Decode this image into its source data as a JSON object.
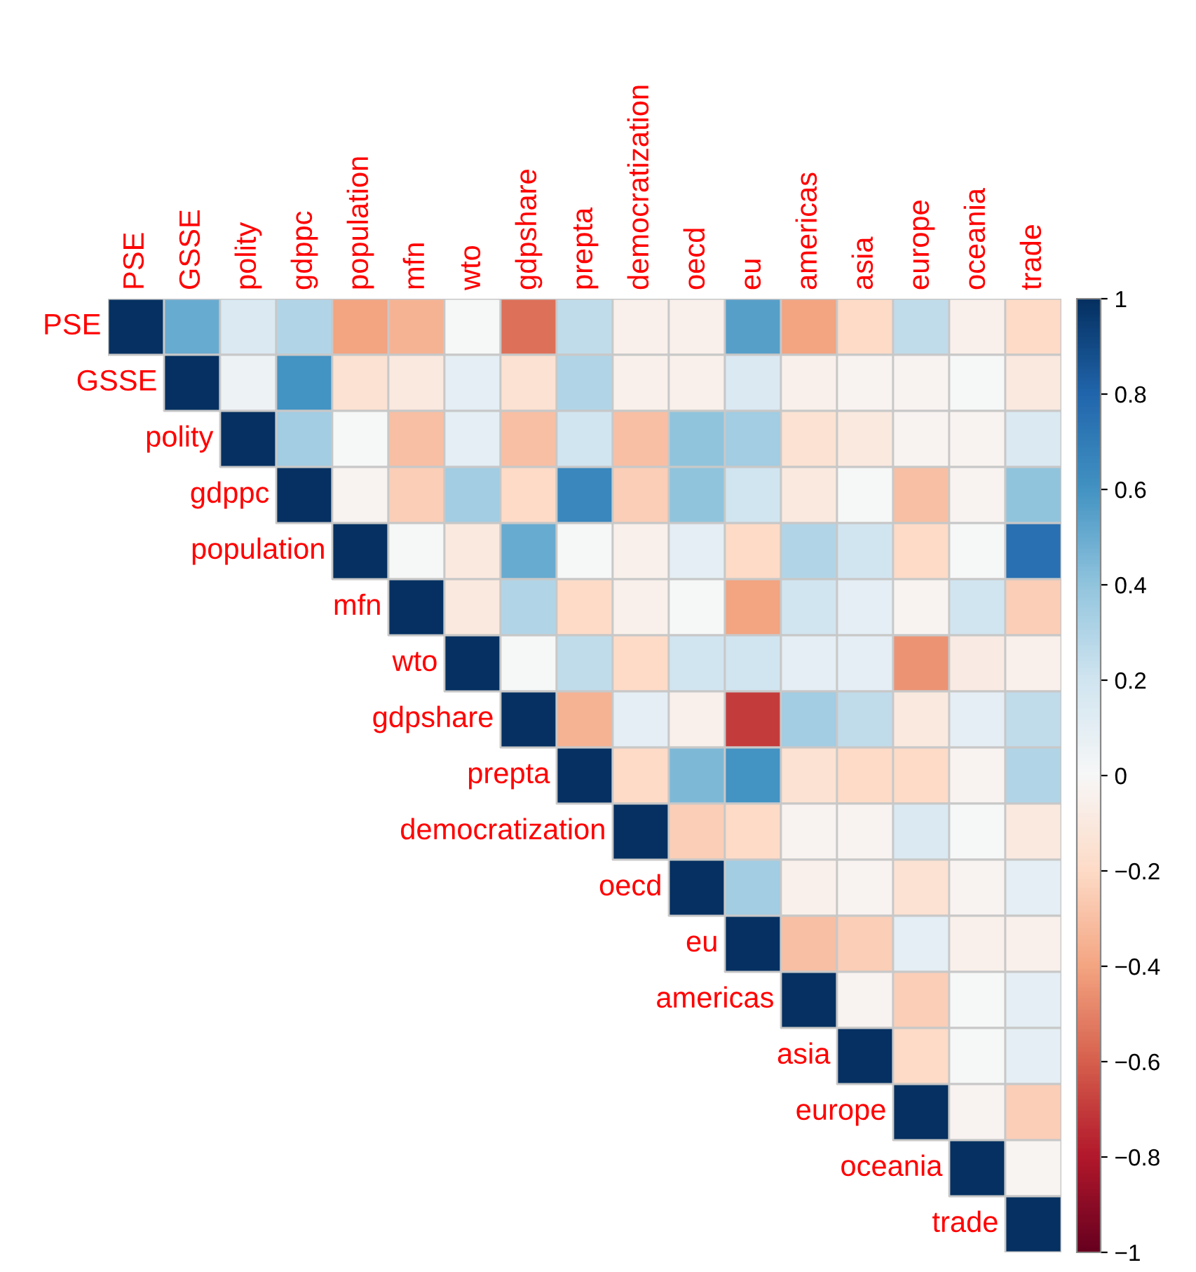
{
  "chart_data": {
    "type": "heatmap",
    "categories": [
      "PSE",
      "GSSE",
      "polity",
      "gdppc",
      "population",
      "mfn",
      "wto",
      "gdpshare",
      "prepta",
      "democratization",
      "oecd",
      "eu",
      "americas",
      "asia",
      "europe",
      "oceania",
      "trade"
    ],
    "y_categories": [
      "PSE",
      "GSSE",
      "polity",
      "gdppc",
      "population",
      "mfn",
      "wto",
      "gdpshare",
      "prepta",
      "democratization",
      "oecd",
      "eu",
      "americas",
      "asia",
      "europe",
      "oceania",
      "trade"
    ],
    "cells": [
      [
        1,
        0.5,
        0.15,
        0.3,
        -0.4,
        -0.35,
        0,
        -0.55,
        0.25,
        -0.05,
        -0.05,
        0.55,
        -0.4,
        -0.2,
        0.25,
        -0.05,
        -0.2
      ],
      [
        null,
        1,
        0.05,
        0.6,
        -0.15,
        -0.1,
        0.1,
        -0.15,
        0.3,
        -0.05,
        -0.05,
        0.15,
        -0.05,
        -0.03,
        -0.03,
        0,
        -0.1
      ],
      [
        null,
        null,
        1,
        0.35,
        0,
        -0.3,
        0.1,
        -0.3,
        0.2,
        -0.3,
        0.4,
        0.35,
        -0.15,
        -0.1,
        -0.03,
        -0.03,
        0.15
      ],
      [
        null,
        null,
        null,
        1,
        -0.03,
        -0.25,
        0.35,
        -0.2,
        0.65,
        -0.25,
        0.4,
        0.2,
        -0.1,
        0,
        -0.3,
        -0.03,
        0.4
      ],
      [
        null,
        null,
        null,
        null,
        1,
        0,
        -0.1,
        0.5,
        0,
        -0.05,
        0.1,
        -0.2,
        0.3,
        0.2,
        -0.2,
        0,
        0.75
      ],
      [
        null,
        null,
        null,
        null,
        null,
        1,
        -0.1,
        0.3,
        -0.2,
        -0.05,
        0,
        -0.4,
        0.2,
        0.1,
        -0.03,
        0.2,
        -0.25
      ],
      [
        null,
        null,
        null,
        null,
        null,
        null,
        1,
        0,
        0.25,
        -0.2,
        0.2,
        0.2,
        0.1,
        0.1,
        -0.45,
        -0.08,
        -0.05
      ],
      [
        null,
        null,
        null,
        null,
        null,
        null,
        null,
        1,
        -0.35,
        0.1,
        -0.05,
        -0.7,
        0.35,
        0.25,
        -0.1,
        0.1,
        0.25
      ],
      [
        null,
        null,
        null,
        null,
        null,
        null,
        null,
        null,
        1,
        -0.2,
        0.45,
        0.6,
        -0.15,
        -0.2,
        -0.2,
        -0.03,
        0.3
      ],
      [
        null,
        null,
        null,
        null,
        null,
        null,
        null,
        null,
        null,
        1,
        -0.25,
        -0.2,
        -0.03,
        -0.03,
        0.15,
        0,
        -0.1
      ],
      [
        null,
        null,
        null,
        null,
        null,
        null,
        null,
        null,
        null,
        null,
        1,
        0.35,
        -0.05,
        -0.03,
        -0.15,
        -0.03,
        0.1
      ],
      [
        null,
        null,
        null,
        null,
        null,
        null,
        null,
        null,
        null,
        null,
        null,
        1,
        -0.3,
        -0.25,
        0.1,
        -0.05,
        -0.05
      ],
      [
        null,
        null,
        null,
        null,
        null,
        null,
        null,
        null,
        null,
        null,
        null,
        null,
        1,
        -0.03,
        -0.25,
        0,
        0.1
      ],
      [
        null,
        null,
        null,
        null,
        null,
        null,
        null,
        null,
        null,
        null,
        null,
        null,
        null,
        1,
        -0.2,
        0,
        0.1
      ],
      [
        null,
        null,
        null,
        null,
        null,
        null,
        null,
        null,
        null,
        null,
        null,
        null,
        null,
        null,
        1,
        -0.03,
        -0.25
      ],
      [
        null,
        null,
        null,
        null,
        null,
        null,
        null,
        null,
        null,
        null,
        null,
        null,
        null,
        null,
        null,
        1,
        -0.02
      ],
      [
        null,
        null,
        null,
        null,
        null,
        null,
        null,
        null,
        null,
        null,
        null,
        null,
        null,
        null,
        null,
        null,
        1
      ]
    ],
    "clim": [
      -1,
      1
    ],
    "cticks": [
      1,
      0.8,
      0.6,
      0.4,
      0.2,
      0,
      {
        "value": -0.2,
        "label": "−0.2"
      },
      {
        "value": -0.4,
        "label": "−0.4"
      },
      {
        "value": -0.6,
        "label": "−0.6"
      },
      {
        "value": -0.8,
        "label": "−0.8"
      },
      {
        "value": -1,
        "label": "−1"
      }
    ]
  }
}
